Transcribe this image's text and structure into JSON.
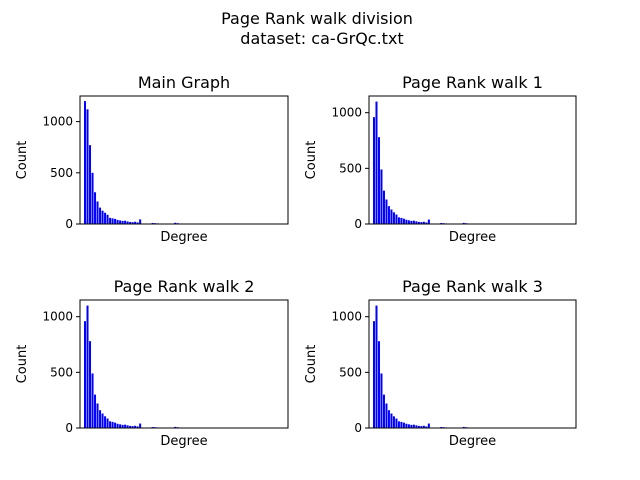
{
  "figure": {
    "suptitle_line1": "Page Rank walk division",
    "suptitle_line2": "dataset: ca-GrQc.txt"
  },
  "colors": {
    "bar": "#0000ff",
    "axis": "#000000",
    "background": "#ffffff"
  },
  "chart_data": [
    {
      "type": "bar",
      "title": "Main Graph",
      "xlabel": "Degree",
      "ylabel": "Count",
      "ylim": [
        0,
        1250
      ],
      "yticks": [
        0,
        500,
        1000
      ],
      "xlim": [
        -2,
        81
      ],
      "x_tick_labels_shown": false,
      "grid": false,
      "values": [
        1200,
        1120,
        770,
        500,
        310,
        220,
        160,
        130,
        110,
        90,
        60,
        55,
        50,
        40,
        35,
        30,
        32,
        25,
        20,
        18,
        22,
        15,
        45,
        0,
        0,
        0,
        0,
        10,
        8,
        6,
        5,
        5,
        4,
        3,
        2,
        2,
        12,
        8,
        5,
        3,
        2,
        2,
        1,
        1,
        1,
        1,
        2,
        1,
        1,
        1,
        1,
        1,
        1,
        1,
        1,
        1,
        1,
        1,
        1,
        0,
        0,
        0,
        0,
        0,
        0,
        0,
        0,
        0,
        0,
        0,
        0,
        0,
        0,
        0,
        0,
        0,
        0,
        0,
        0,
        0
      ]
    },
    {
      "type": "bar",
      "title": "Page Rank walk 1",
      "xlabel": "Degree",
      "ylabel": "Count",
      "ylim": [
        0,
        1150
      ],
      "yticks": [
        0,
        500,
        1000
      ],
      "xlim": [
        -2,
        81
      ],
      "x_tick_labels_shown": false,
      "grid": false,
      "values": [
        960,
        1100,
        780,
        490,
        300,
        220,
        160,
        130,
        105,
        85,
        60,
        55,
        48,
        38,
        33,
        28,
        30,
        24,
        19,
        17,
        20,
        14,
        40,
        0,
        0,
        0,
        0,
        9,
        7,
        5,
        4,
        4,
        3,
        3,
        2,
        2,
        10,
        7,
        4,
        3,
        2,
        2,
        1,
        1,
        1,
        1,
        2,
        1,
        1,
        1,
        1,
        1,
        1,
        1,
        1,
        1,
        1,
        1,
        1,
        0,
        0,
        0,
        0,
        0,
        0,
        0,
        0,
        0,
        0,
        0,
        0,
        0,
        0,
        0,
        0,
        0,
        0,
        0,
        0,
        0
      ]
    },
    {
      "type": "bar",
      "title": "Page Rank walk 2",
      "xlabel": "Degree",
      "ylabel": "Count",
      "ylim": [
        0,
        1150
      ],
      "yticks": [
        0,
        500,
        1000
      ],
      "xlim": [
        -2,
        81
      ],
      "x_tick_labels_shown": false,
      "grid": false,
      "values": [
        960,
        1100,
        780,
        490,
        300,
        220,
        160,
        130,
        105,
        85,
        60,
        55,
        48,
        38,
        33,
        28,
        30,
        24,
        19,
        17,
        20,
        14,
        40,
        0,
        0,
        0,
        0,
        9,
        7,
        5,
        4,
        4,
        3,
        3,
        2,
        2,
        10,
        7,
        4,
        3,
        2,
        2,
        1,
        1,
        1,
        1,
        2,
        1,
        1,
        1,
        1,
        1,
        1,
        1,
        1,
        1,
        1,
        1,
        1,
        0,
        0,
        0,
        0,
        0,
        0,
        0,
        0,
        0,
        0,
        0,
        0,
        0,
        0,
        0,
        0,
        0,
        0,
        0,
        0,
        0
      ]
    },
    {
      "type": "bar",
      "title": "Page Rank walk 3",
      "xlabel": "Degree",
      "ylabel": "Count",
      "ylim": [
        0,
        1150
      ],
      "yticks": [
        0,
        500,
        1000
      ],
      "xlim": [
        -2,
        81
      ],
      "x_tick_labels_shown": false,
      "grid": false,
      "values": [
        960,
        1100,
        780,
        490,
        300,
        220,
        160,
        130,
        105,
        85,
        60,
        55,
        48,
        38,
        33,
        28,
        30,
        24,
        19,
        17,
        20,
        14,
        40,
        0,
        0,
        0,
        0,
        9,
        7,
        5,
        4,
        4,
        3,
        3,
        2,
        2,
        10,
        7,
        4,
        3,
        2,
        2,
        1,
        1,
        1,
        1,
        2,
        1,
        1,
        1,
        1,
        1,
        1,
        1,
        1,
        1,
        1,
        1,
        1,
        0,
        0,
        0,
        0,
        0,
        0,
        0,
        0,
        0,
        0,
        0,
        0,
        0,
        0,
        0,
        0,
        0,
        0,
        0,
        0,
        0
      ]
    }
  ]
}
